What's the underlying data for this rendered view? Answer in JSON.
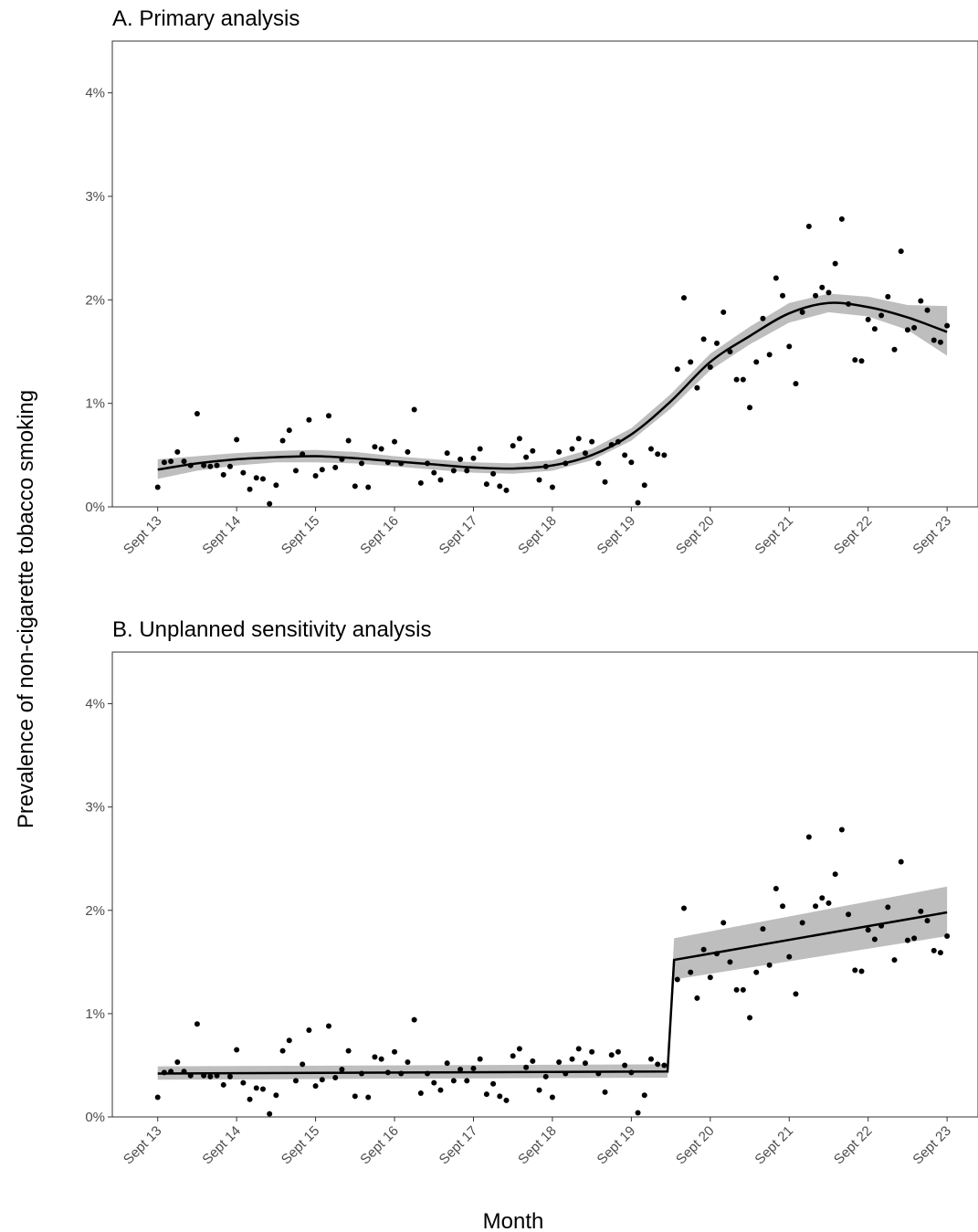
{
  "chart_data": [
    {
      "type": "scatter",
      "title": "A. Primary analysis",
      "x": [
        0,
        1,
        2,
        3,
        4,
        5,
        6,
        7,
        8,
        9,
        10,
        11,
        12,
        13,
        14,
        15,
        16,
        17,
        18,
        19,
        20,
        21,
        22,
        23,
        24,
        25,
        26,
        27,
        28,
        29,
        30,
        31,
        32,
        33,
        34,
        35,
        36,
        37,
        38,
        39,
        40,
        41,
        42,
        43,
        44,
        45,
        46,
        47,
        48,
        49,
        50,
        51,
        52,
        53,
        54,
        55,
        56,
        57,
        58,
        59,
        60,
        61,
        62,
        63,
        64,
        65,
        66,
        67,
        68,
        69,
        70,
        71,
        72,
        73,
        74,
        75,
        76,
        77,
        79,
        80,
        81,
        82,
        83,
        84,
        85,
        86,
        87,
        88,
        89,
        90,
        91,
        92,
        93,
        94,
        95,
        96,
        97,
        98,
        99,
        100,
        101,
        102,
        103,
        104,
        105,
        106,
        107,
        108,
        109,
        110,
        111,
        112,
        113,
        114,
        115,
        116,
        117,
        118,
        119,
        120
      ],
      "values": [
        0.19,
        0.43,
        0.44,
        0.53,
        0.44,
        0.4,
        0.9,
        0.4,
        0.39,
        0.4,
        0.31,
        0.39,
        0.65,
        0.33,
        0.17,
        0.28,
        0.27,
        0.03,
        0.21,
        0.64,
        0.74,
        0.35,
        0.51,
        0.84,
        0.3,
        0.36,
        0.88,
        0.38,
        0.46,
        0.64,
        0.2,
        0.42,
        0.19,
        0.58,
        0.56,
        0.43,
        0.63,
        0.42,
        0.53,
        0.94,
        0.23,
        0.42,
        0.33,
        0.26,
        0.52,
        0.35,
        0.46,
        0.35,
        0.47,
        0.56,
        0.22,
        0.32,
        0.2,
        0.16,
        0.59,
        0.66,
        0.48,
        0.54,
        0.26,
        0.39,
        0.19,
        0.53,
        0.42,
        0.56,
        0.66,
        0.52,
        0.63,
        0.42,
        0.24,
        0.6,
        0.63,
        0.5,
        0.43,
        0.04,
        0.21,
        0.56,
        0.51,
        0.5,
        1.33,
        2.02,
        1.4,
        1.15,
        1.62,
        1.35,
        1.58,
        1.88,
        1.5,
        1.23,
        1.23,
        0.96,
        1.4,
        1.82,
        1.47,
        2.21,
        2.04,
        1.55,
        1.19,
        1.88,
        2.71,
        2.04,
        2.12,
        2.07,
        2.35,
        2.78,
        1.96,
        1.42,
        1.41,
        1.81,
        1.72,
        1.85,
        2.03,
        1.52,
        2.47,
        1.71,
        1.73,
        1.99,
        1.9,
        1.61,
        1.59,
        1.75
      ],
      "color": "#000000",
      "fit": {
        "x": [
          0,
          6,
          12,
          18,
          24,
          30,
          36,
          42,
          48,
          54,
          60,
          66,
          72,
          78,
          84,
          90,
          96,
          102,
          108,
          114,
          120
        ],
        "values": [
          0.36,
          0.42,
          0.46,
          0.48,
          0.49,
          0.47,
          0.44,
          0.41,
          0.38,
          0.37,
          0.4,
          0.5,
          0.7,
          1.02,
          1.4,
          1.65,
          1.87,
          1.97,
          1.93,
          1.83,
          1.69
        ],
        "lower": [
          0.27,
          0.35,
          0.4,
          0.43,
          0.43,
          0.42,
          0.39,
          0.36,
          0.33,
          0.32,
          0.35,
          0.45,
          0.64,
          0.95,
          1.32,
          1.57,
          1.78,
          1.88,
          1.84,
          1.71,
          1.46
        ],
        "upper": [
          0.46,
          0.49,
          0.52,
          0.54,
          0.55,
          0.53,
          0.49,
          0.46,
          0.43,
          0.42,
          0.45,
          0.56,
          0.76,
          1.09,
          1.48,
          1.74,
          1.97,
          2.06,
          2.03,
          1.95,
          1.94
        ],
        "color": "#000000",
        "band_color": "#bebebe"
      },
      "xlim": [
        -6.9,
        124.7
      ],
      "ylim": [
        0,
        4.5
      ],
      "xticks": [
        {
          "value": 0,
          "label": "Sept 13"
        },
        {
          "value": 12,
          "label": "Sept 14"
        },
        {
          "value": 24,
          "label": "Sept 15"
        },
        {
          "value": 36,
          "label": "Sept 16"
        },
        {
          "value": 48,
          "label": "Sept 17"
        },
        {
          "value": 60,
          "label": "Sept 18"
        },
        {
          "value": 72,
          "label": "Sept 19"
        },
        {
          "value": 84,
          "label": "Sept 20"
        },
        {
          "value": 96,
          "label": "Sept 21"
        },
        {
          "value": 108,
          "label": "Sept 22"
        },
        {
          "value": 120,
          "label": "Sept 23"
        }
      ],
      "yticks": [
        {
          "value": 0,
          "label": "0%"
        },
        {
          "value": 1,
          "label": "1%"
        },
        {
          "value": 2,
          "label": "2%"
        },
        {
          "value": 3,
          "label": "3%"
        },
        {
          "value": 4,
          "label": "4%"
        }
      ]
    },
    {
      "type": "scatter",
      "title": "B. Unplanned sensitivity analysis",
      "x": [
        0,
        1,
        2,
        3,
        4,
        5,
        6,
        7,
        8,
        9,
        10,
        11,
        12,
        13,
        14,
        15,
        16,
        17,
        18,
        19,
        20,
        21,
        22,
        23,
        24,
        25,
        26,
        27,
        28,
        29,
        30,
        31,
        32,
        33,
        34,
        35,
        36,
        37,
        38,
        39,
        40,
        41,
        42,
        43,
        44,
        45,
        46,
        47,
        48,
        49,
        50,
        51,
        52,
        53,
        54,
        55,
        56,
        57,
        58,
        59,
        60,
        61,
        62,
        63,
        64,
        65,
        66,
        67,
        68,
        69,
        70,
        71,
        72,
        73,
        74,
        75,
        76,
        77,
        79,
        80,
        81,
        82,
        83,
        84,
        85,
        86,
        87,
        88,
        89,
        90,
        91,
        92,
        93,
        94,
        95,
        96,
        97,
        98,
        99,
        100,
        101,
        102,
        103,
        104,
        105,
        106,
        107,
        108,
        109,
        110,
        111,
        112,
        113,
        114,
        115,
        116,
        117,
        118,
        119,
        120
      ],
      "values": [
        0.19,
        0.43,
        0.44,
        0.53,
        0.44,
        0.4,
        0.9,
        0.4,
        0.39,
        0.4,
        0.31,
        0.39,
        0.65,
        0.33,
        0.17,
        0.28,
        0.27,
        0.03,
        0.21,
        0.64,
        0.74,
        0.35,
        0.51,
        0.84,
        0.3,
        0.36,
        0.88,
        0.38,
        0.46,
        0.64,
        0.2,
        0.42,
        0.19,
        0.58,
        0.56,
        0.43,
        0.63,
        0.42,
        0.53,
        0.94,
        0.23,
        0.42,
        0.33,
        0.26,
        0.52,
        0.35,
        0.46,
        0.35,
        0.47,
        0.56,
        0.22,
        0.32,
        0.2,
        0.16,
        0.59,
        0.66,
        0.48,
        0.54,
        0.26,
        0.39,
        0.19,
        0.53,
        0.42,
        0.56,
        0.66,
        0.52,
        0.63,
        0.42,
        0.24,
        0.6,
        0.63,
        0.5,
        0.43,
        0.04,
        0.21,
        0.56,
        0.51,
        0.5,
        1.33,
        2.02,
        1.4,
        1.15,
        1.62,
        1.35,
        1.58,
        1.88,
        1.5,
        1.23,
        1.23,
        0.96,
        1.4,
        1.82,
        1.47,
        2.21,
        2.04,
        1.55,
        1.19,
        1.88,
        2.71,
        2.04,
        2.12,
        2.07,
        2.35,
        2.78,
        1.96,
        1.42,
        1.41,
        1.81,
        1.72,
        1.85,
        2.03,
        1.52,
        2.47,
        1.71,
        1.73,
        1.99,
        1.9,
        1.61,
        1.59,
        1.75
      ],
      "color": "#000000",
      "fit": {
        "x": [
          0,
          77.5,
          78.5,
          120
        ],
        "values": [
          0.42,
          0.44,
          1.52,
          1.98
        ],
        "lower": [
          0.36,
          0.38,
          1.33,
          1.75
        ],
        "upper": [
          0.49,
          0.51,
          1.73,
          2.23
        ],
        "color": "#000000",
        "band_color": "#bebebe"
      },
      "xlim": [
        -6.9,
        124.7
      ],
      "ylim": [
        0,
        4.5
      ],
      "xticks": [
        {
          "value": 0,
          "label": "Sept 13"
        },
        {
          "value": 12,
          "label": "Sept 14"
        },
        {
          "value": 24,
          "label": "Sept 15"
        },
        {
          "value": 36,
          "label": "Sept 16"
        },
        {
          "value": 48,
          "label": "Sept 17"
        },
        {
          "value": 60,
          "label": "Sept 18"
        },
        {
          "value": 72,
          "label": "Sept 19"
        },
        {
          "value": 84,
          "label": "Sept 20"
        },
        {
          "value": 96,
          "label": "Sept 21"
        },
        {
          "value": 108,
          "label": "Sept 22"
        },
        {
          "value": 120,
          "label": "Sept 23"
        }
      ],
      "yticks": [
        {
          "value": 0,
          "label": "0%"
        },
        {
          "value": 1,
          "label": "1%"
        },
        {
          "value": 2,
          "label": "2%"
        },
        {
          "value": 3,
          "label": "3%"
        },
        {
          "value": 4,
          "label": "4%"
        }
      ]
    }
  ],
  "x_label": "Month",
  "y_label": "Prevalence of non-cigarette tobacco smoking"
}
